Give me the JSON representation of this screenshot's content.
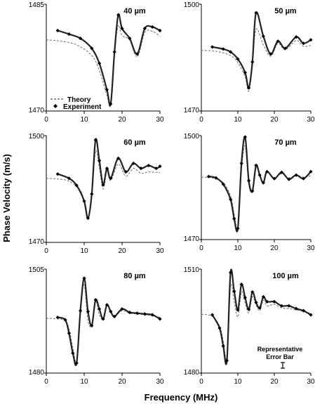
{
  "figure": {
    "ylabel": "Phase Velocity (m/s)",
    "xlabel": "Frequency (MHz)",
    "legend": {
      "theory": "Theory",
      "experiment": "Experiment",
      "placement": "bottom-left of first panel"
    },
    "error_bar_note": [
      "Representative",
      "Error Bar"
    ]
  },
  "chart_data": [
    {
      "type": "line",
      "panel_label": "40 µm",
      "xlim": [
        0,
        30
      ],
      "ylim": [
        1470,
        1485
      ],
      "xticks": [
        0,
        10,
        20,
        30
      ],
      "ylim_labels": [
        "1485",
        "1470"
      ],
      "series": [
        {
          "name": "Theory",
          "style": "dashed",
          "x": [
            0,
            4,
            8,
            12,
            14,
            16,
            17,
            18,
            19,
            20,
            22,
            24,
            26,
            28,
            30
          ],
          "y": [
            1480,
            1479.8,
            1479.3,
            1477.8,
            1475.7,
            1472.2,
            1470.8,
            1478,
            1482,
            1480.6,
            1480,
            1477.6,
            1481,
            1481.2,
            1480.5
          ]
        },
        {
          "name": "Experiment",
          "style": "markers",
          "x": [
            3,
            6,
            9,
            12,
            14,
            16,
            17,
            18,
            19,
            20,
            22,
            24,
            26,
            28,
            30
          ],
          "y": [
            1481.3,
            1480.8,
            1480.2,
            1478.8,
            1476.7,
            1473,
            1471,
            1478.3,
            1483.5,
            1481.6,
            1480.2,
            1478,
            1481.6,
            1481.8,
            1481.3
          ]
        }
      ]
    },
    {
      "type": "line",
      "panel_label": "50 µm",
      "xlim": [
        0,
        30
      ],
      "ylim": [
        1470,
        1500
      ],
      "xticks": [
        0,
        10,
        20,
        30
      ],
      "ylim_labels": [
        "1500",
        "1470"
      ],
      "series": [
        {
          "name": "Theory",
          "style": "dashed",
          "x": [
            0,
            4,
            8,
            10,
            12,
            13,
            14,
            15,
            17,
            19,
            21,
            23,
            26,
            28,
            30
          ],
          "y": [
            1487,
            1486.8,
            1485.6,
            1483.6,
            1479.6,
            1475.6,
            1483,
            1493,
            1488.6,
            1485.4,
            1489,
            1487.2,
            1489.8,
            1488.2,
            1488.4
          ]
        },
        {
          "name": "Experiment",
          "style": "markers",
          "x": [
            3,
            6,
            8,
            10,
            12,
            13,
            14,
            15,
            17,
            19,
            21,
            23,
            26,
            28,
            30
          ],
          "y": [
            1488,
            1487.4,
            1486.6,
            1484.6,
            1480.8,
            1476.5,
            1483.8,
            1497.6,
            1491,
            1486,
            1489.6,
            1487.6,
            1490.8,
            1489,
            1490
          ]
        }
      ]
    },
    {
      "type": "line",
      "panel_label": "60 µm",
      "xlim": [
        0,
        30
      ],
      "ylim": [
        1470,
        1500
      ],
      "xticks": [
        0,
        10,
        20,
        30
      ],
      "ylim_labels": [
        "1500",
        "1470"
      ],
      "series": [
        {
          "name": "Theory",
          "style": "dashed",
          "x": [
            0,
            3,
            6,
            9,
            10,
            11,
            12,
            13,
            14,
            15,
            16,
            17,
            19,
            21,
            23,
            25,
            27,
            30
          ],
          "y": [
            1488,
            1487.8,
            1487.2,
            1484.6,
            1481,
            1476.6,
            1483,
            1495.6,
            1491,
            1485,
            1490,
            1487.4,
            1492,
            1488.6,
            1490.8,
            1489.4,
            1489.8,
            1489.6
          ]
        },
        {
          "name": "Experiment",
          "style": "markers",
          "x": [
            3,
            6,
            8,
            10,
            11,
            12,
            13,
            14,
            15,
            16,
            17,
            19,
            21,
            23,
            25,
            27,
            29,
            30
          ],
          "y": [
            1489.2,
            1488,
            1486,
            1481.6,
            1476.8,
            1483.6,
            1498.8,
            1493,
            1486.2,
            1490.8,
            1488,
            1493.6,
            1489.8,
            1492.2,
            1490.8,
            1491.6,
            1490.8,
            1491.4
          ]
        }
      ]
    },
    {
      "type": "line",
      "panel_label": "70 µm",
      "xlim": [
        0,
        30
      ],
      "ylim": [
        1470,
        1500
      ],
      "xticks": [
        0,
        10,
        20,
        30
      ],
      "ylim_labels": [
        "1500",
        "1470"
      ],
      "series": [
        {
          "name": "Theory",
          "style": "dashed",
          "x": [
            0,
            3,
            6,
            8,
            9,
            10,
            11,
            12,
            13,
            14,
            15,
            16,
            17,
            18,
            20,
            22,
            24,
            26,
            28,
            30
          ],
          "y": [
            1488,
            1487.8,
            1486.4,
            1482.6,
            1477.4,
            1473.6,
            1490,
            1497,
            1486,
            1483.8,
            1490.8,
            1488.4,
            1486.6,
            1489.4,
            1487.8,
            1489,
            1487.8,
            1488.6,
            1488,
            1488.4
          ]
        },
        {
          "name": "Experiment",
          "style": "markers",
          "x": [
            2,
            4,
            6,
            8,
            9,
            10,
            11,
            12,
            13,
            14,
            15,
            16,
            17,
            18,
            20,
            22,
            24,
            26,
            28,
            30
          ],
          "y": [
            1488.2,
            1487.8,
            1486,
            1481.6,
            1476,
            1473.2,
            1492,
            1499.6,
            1487,
            1484,
            1491.4,
            1488.6,
            1486.4,
            1489.6,
            1487.6,
            1489.4,
            1487.4,
            1488.6,
            1487.6,
            1489.6
          ]
        }
      ]
    },
    {
      "type": "line",
      "panel_label": "80 µm",
      "xlim": [
        0,
        30
      ],
      "ylim": [
        1480,
        1505
      ],
      "xticks": [
        0,
        10,
        20,
        30
      ],
      "ylim_labels": [
        "1505",
        "1480"
      ],
      "series": [
        {
          "name": "Theory",
          "style": "dashed",
          "x": [
            0,
            3,
            5,
            6,
            7,
            8,
            9,
            10,
            11,
            12,
            13,
            14,
            15,
            16,
            17,
            18,
            20,
            22,
            24,
            26,
            28,
            30
          ],
          "y": [
            1493.2,
            1493,
            1492.6,
            1490.6,
            1486.2,
            1483,
            1496,
            1501.2,
            1492.6,
            1491.6,
            1497.2,
            1494,
            1493,
            1496.2,
            1494.6,
            1493.6,
            1495,
            1494.4,
            1494.2,
            1494,
            1493.8,
            1493.4
          ]
        },
        {
          "name": "Experiment",
          "style": "markers",
          "x": [
            3,
            5,
            6,
            7,
            8,
            9,
            10,
            11,
            12,
            13,
            14,
            15,
            16,
            17,
            18,
            20,
            22,
            24,
            26,
            28,
            30
          ],
          "y": [
            1493.4,
            1492.8,
            1489.6,
            1484.8,
            1482.4,
            1495,
            1502.8,
            1494.8,
            1491.4,
            1497.6,
            1495.4,
            1493,
            1496.4,
            1494.8,
            1493.6,
            1495.4,
            1494.6,
            1494.4,
            1494.2,
            1494,
            1493
          ]
        }
      ]
    },
    {
      "type": "line",
      "panel_label": "100 µm",
      "xlim": [
        0,
        30
      ],
      "ylim": [
        1480,
        1510
      ],
      "xticks": [
        0,
        10,
        20,
        30
      ],
      "ylim_labels": [
        "1510",
        "1480"
      ],
      "series": [
        {
          "name": "Theory",
          "style": "dashed",
          "x": [
            0,
            3,
            5,
            6,
            7,
            8,
            9,
            10,
            11,
            12,
            13,
            14,
            15,
            16,
            17,
            18,
            20,
            22,
            24,
            26,
            28,
            30
          ],
          "y": [
            1497,
            1496.4,
            1493.6,
            1489.4,
            1484.6,
            1505,
            1500.6,
            1496.2,
            1503.4,
            1500.2,
            1497.4,
            1502,
            1499.6,
            1498,
            1501,
            1499.4,
            1499.8,
            1498.8,
            1498.6,
            1498.2,
            1497.8,
            1497.2
          ]
        },
        {
          "name": "Experiment",
          "style": "markers",
          "x": [
            3,
            5,
            6,
            7,
            8,
            9,
            10,
            11,
            12,
            13,
            14,
            15,
            16,
            17,
            18,
            20,
            22,
            24,
            26,
            28,
            30
          ],
          "y": [
            1496.8,
            1493,
            1487.8,
            1483.6,
            1509,
            1503.6,
            1498.2,
            1505.6,
            1501.8,
            1498.4,
            1503.4,
            1500.4,
            1498.8,
            1502,
            1500.6,
            1500.6,
            1499.4,
            1499.4,
            1498.6,
            1498,
            1496.8
          ]
        }
      ]
    }
  ]
}
